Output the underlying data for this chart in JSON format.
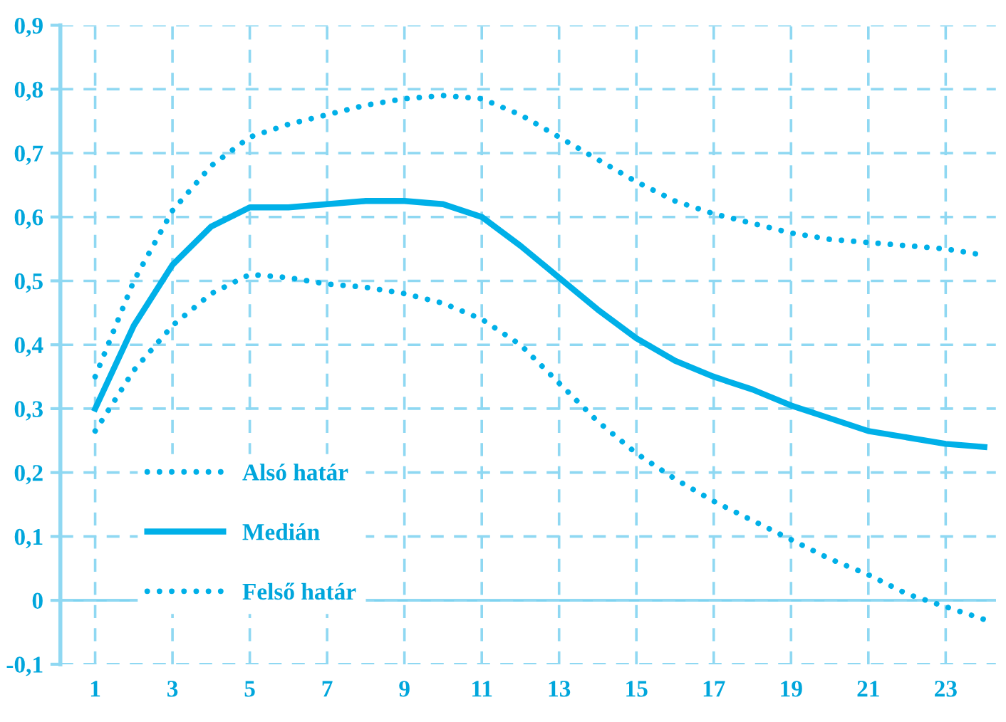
{
  "chart_data": {
    "type": "line",
    "x": [
      1,
      2,
      3,
      4,
      5,
      6,
      7,
      8,
      9,
      10,
      11,
      12,
      13,
      14,
      15,
      16,
      17,
      18,
      19,
      20,
      21,
      22,
      23,
      24
    ],
    "series": [
      {
        "name": "Alsó határ",
        "color": "#00b0e8",
        "line_style": "dotted",
        "values": [
          0.265,
          0.36,
          0.43,
          0.48,
          0.51,
          0.505,
          0.495,
          0.49,
          0.48,
          0.465,
          0.44,
          0.4,
          0.34,
          0.28,
          0.23,
          0.19,
          0.155,
          0.125,
          0.095,
          0.065,
          0.04,
          0.01,
          -0.01,
          -0.03
        ]
      },
      {
        "name": "Medián",
        "color": "#00b0e8",
        "line_style": "solid",
        "values": [
          0.3,
          0.43,
          0.525,
          0.585,
          0.615,
          0.615,
          0.62,
          0.625,
          0.625,
          0.62,
          0.6,
          0.555,
          0.505,
          0.455,
          0.41,
          0.375,
          0.35,
          0.33,
          0.305,
          0.285,
          0.265,
          0.255,
          0.245,
          0.24
        ]
      },
      {
        "name": "Felső határ",
        "color": "#00b0e8",
        "line_style": "dotted",
        "values": [
          0.35,
          0.5,
          0.61,
          0.68,
          0.725,
          0.745,
          0.76,
          0.775,
          0.785,
          0.79,
          0.785,
          0.76,
          0.725,
          0.69,
          0.655,
          0.625,
          0.605,
          0.59,
          0.575,
          0.565,
          0.56,
          0.555,
          0.55,
          0.54
        ]
      }
    ],
    "xlim": [
      0.1,
      24.3
    ],
    "xticks": [
      1,
      3,
      5,
      7,
      9,
      11,
      13,
      15,
      17,
      19,
      21,
      23
    ],
    "ylim": [
      -0.1,
      0.9
    ],
    "yticks": [
      {
        "value": -0.1,
        "label": "-0,1"
      },
      0,
      {
        "value": 0.1,
        "label": "0,1"
      },
      {
        "value": 0.2,
        "label": "0,2"
      },
      {
        "value": 0.3,
        "label": "0,3"
      },
      {
        "value": 0.4,
        "label": "0,4"
      },
      {
        "value": 0.5,
        "label": "0,5"
      },
      {
        "value": 0.6,
        "label": "0,6"
      },
      {
        "value": 0.7,
        "label": "0,7"
      },
      {
        "value": 0.8,
        "label": "0,8"
      },
      {
        "value": 0.9,
        "label": "0,9"
      }
    ],
    "ref_lines": [
      {
        "axis": "y",
        "value": 0,
        "color": "#7fd3f0",
        "line_style": "solid"
      }
    ],
    "grid": true,
    "legend": "bottom left",
    "marker": "none"
  }
}
